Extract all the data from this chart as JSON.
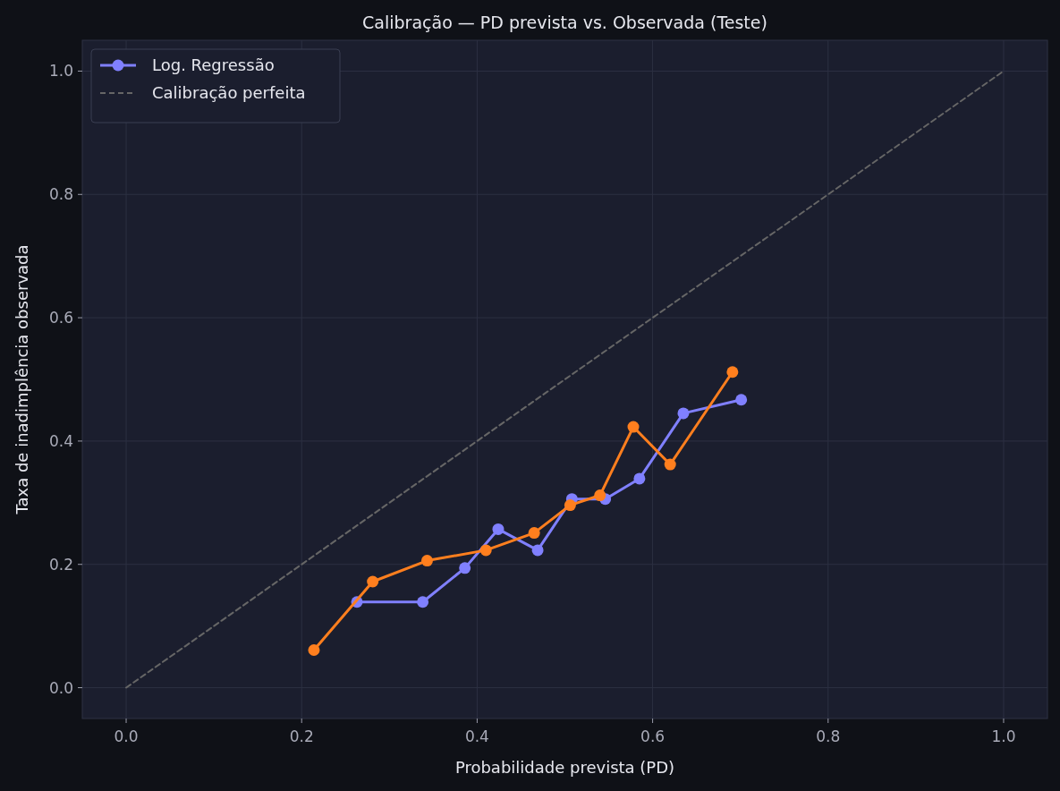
{
  "chart_data": {
    "type": "line",
    "title": "Calibração — PD prevista vs. Observada (Teste)",
    "xlabel": "Probabilidade prevista (PD)",
    "ylabel": "Taxa de inadimplência observada",
    "xlim": [
      -0.05,
      1.05
    ],
    "ylim": [
      -0.05,
      1.05
    ],
    "xticks": [
      {
        "value": 0,
        "label": "0.0"
      },
      0.2,
      0.4,
      0.6,
      0.8,
      {
        "value": 1,
        "label": "1.0"
      }
    ],
    "yticks": [
      {
        "value": 0,
        "label": "0.0"
      },
      0.2,
      0.4,
      0.6,
      0.8,
      {
        "value": 1,
        "label": "1.0"
      }
    ],
    "grid": true,
    "legend": "top left",
    "marker": "circle",
    "series": [
      {
        "name": "Log. Regressão",
        "color": "#8080ff",
        "x": [
          0.263,
          0.338,
          0.386,
          0.424,
          0.469,
          0.508,
          0.546,
          0.585,
          0.635,
          0.701
        ],
        "values": [
          0.139,
          0.139,
          0.194,
          0.257,
          0.223,
          0.306,
          0.306,
          0.339,
          0.445,
          0.467
        ]
      },
      {
        "color": "#ff7f1e",
        "x": [
          0.214,
          0.281,
          0.343,
          0.41,
          0.465,
          0.506,
          0.54,
          0.578,
          0.62,
          0.691
        ],
        "values": [
          0.061,
          0.172,
          0.206,
          0.223,
          0.251,
          0.296,
          0.312,
          0.423,
          0.362,
          0.512
        ]
      },
      {
        "name": "Calibração perfeita",
        "color": "#666666",
        "x": [
          0,
          1
        ],
        "values": [
          0,
          1
        ],
        "line_style": "dashed",
        "marker": "none"
      }
    ]
  }
}
